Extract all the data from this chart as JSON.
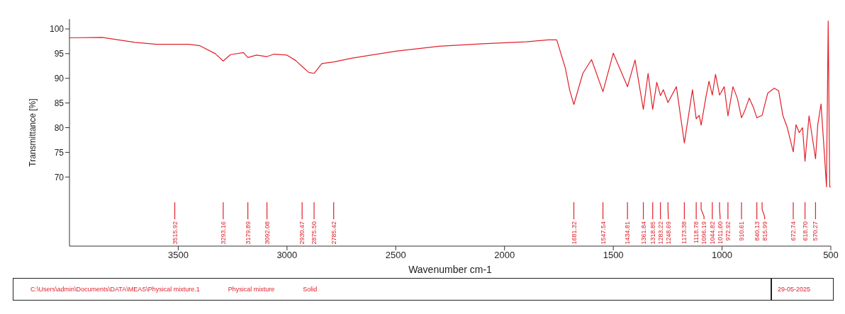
{
  "chart_data": {
    "type": "line",
    "xlabel": "Wavenumber cm-1",
    "ylabel": "Transmittance [%]",
    "xlim": [
      4000,
      500
    ],
    "ylim": [
      56,
      102
    ],
    "xticks": [
      3500,
      3000,
      2500,
      2000,
      1500,
      1000,
      500
    ],
    "yticks": [
      70,
      75,
      80,
      85,
      90,
      95,
      100
    ],
    "marker": "none",
    "line_style": "solid",
    "series": [
      {
        "color": "#e0202a",
        "x": [
          4000,
          3850,
          3700,
          3600,
          3450,
          3400,
          3330,
          3293.16,
          3260,
          3200,
          3179.89,
          3140,
          3092.08,
          3060,
          3000,
          2960,
          2930.47,
          2900,
          2875.5,
          2840,
          2785.42,
          2700,
          2500,
          2300,
          2100,
          1900,
          1800,
          1760,
          1720,
          1700,
          1681.32,
          1640,
          1600,
          1547.54,
          1500,
          1434.81,
          1400,
          1361.84,
          1340,
          1318.85,
          1300,
          1283.22,
          1270,
          1248.69,
          1210,
          1173.38,
          1136,
          1118.78,
          1105,
          1096.19,
          1075,
          1060,
          1044.82,
          1030,
          1011.6,
          990,
          972.92,
          950,
          930,
          910.61,
          895,
          875,
          855,
          840.13,
          815.99,
          790,
          760,
          740,
          720,
          700,
          672.74,
          660,
          645,
          630,
          618.7,
          600,
          585,
          570.27,
          560,
          545,
          530,
          520,
          512,
          505,
          500
        ],
        "values": [
          98.2,
          98.3,
          97.3,
          96.9,
          96.9,
          96.6,
          95.0,
          93.5,
          94.8,
          95.2,
          94.2,
          94.7,
          94.4,
          94.9,
          94.7,
          93.6,
          92.4,
          91.2,
          91.0,
          93.0,
          93.3,
          94.1,
          95.5,
          96.5,
          97.0,
          97.4,
          97.8,
          97.8,
          92,
          87.5,
          84.7,
          91,
          93.8,
          87.3,
          95.1,
          88.3,
          93.7,
          83.7,
          91.0,
          83.7,
          89.2,
          86.5,
          87.7,
          85.1,
          88.3,
          76.9,
          87.7,
          81.8,
          82.5,
          80.5,
          86,
          89.4,
          86.6,
          90.8,
          86.6,
          88.3,
          82.4,
          88.3,
          86,
          82,
          83.5,
          86,
          84,
          82,
          82.5,
          87,
          88,
          87.5,
          82.4,
          80,
          75.1,
          80.6,
          79,
          80,
          73.2,
          82.4,
          78,
          73.7,
          80.6,
          84.8,
          75,
          68,
          101.6,
          68,
          68
        ]
      }
    ],
    "ref_lines": [
      {
        "axis": "x",
        "value": 3515.92,
        "label": "3515.92"
      },
      {
        "axis": "x",
        "value": 3293.16,
        "label": "3293.16"
      },
      {
        "axis": "x",
        "value": 3179.89,
        "label": "3179.89"
      },
      {
        "axis": "x",
        "value": 3092.08,
        "label": "3092.08"
      },
      {
        "axis": "x",
        "value": 2930.47,
        "label": "2930.47"
      },
      {
        "axis": "x",
        "value": 2875.5,
        "label": "2875.50"
      },
      {
        "axis": "x",
        "value": 2785.42,
        "label": "2785.42"
      },
      {
        "axis": "x",
        "value": 1681.32,
        "label": "1681.32"
      },
      {
        "axis": "x",
        "value": 1547.54,
        "label": "1547.54"
      },
      {
        "axis": "x",
        "value": 1434.81,
        "label": "1434.81"
      },
      {
        "axis": "x",
        "value": 1361.84,
        "label": "1361.84"
      },
      {
        "axis": "x",
        "value": 1318.85,
        "label": "1318.85"
      },
      {
        "axis": "x",
        "value": 1283.22,
        "label": "1283.22"
      },
      {
        "axis": "x",
        "value": 1248.69,
        "label": "1248.69"
      },
      {
        "axis": "x",
        "value": 1173.38,
        "label": "1173.38"
      },
      {
        "axis": "x",
        "value": 1118.78,
        "label": "1118.78"
      },
      {
        "axis": "x",
        "value": 1096.19,
        "label": "1096.19"
      },
      {
        "axis": "x",
        "value": 1044.82,
        "label": "1044.82"
      },
      {
        "axis": "x",
        "value": 1011.6,
        "label": "1011.60"
      },
      {
        "axis": "x",
        "value": 972.92,
        "label": "972.92"
      },
      {
        "axis": "x",
        "value": 910.61,
        "label": "910.61"
      },
      {
        "axis": "x",
        "value": 840.13,
        "label": "840.13"
      },
      {
        "axis": "x",
        "value": 815.99,
        "label": "815.99"
      },
      {
        "axis": "x",
        "value": 672.74,
        "label": "672.74"
      },
      {
        "axis": "x",
        "value": 618.7,
        "label": "618.70"
      },
      {
        "axis": "x",
        "value": 570.27,
        "label": "570.27"
      }
    ],
    "annotations": [
      "C:\\Users\\admin\\Documents\\DATA\\MEAS\\Physical mixture.1",
      "Physical mixture",
      "Solid",
      "29-05-2025"
    ]
  }
}
